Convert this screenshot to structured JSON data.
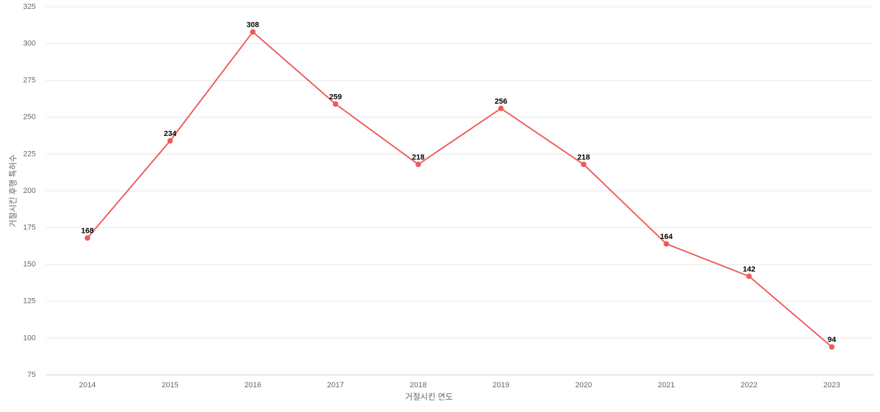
{
  "chart_data": {
    "type": "line",
    "x_label": "거절시킨 연도",
    "y_label": "거절시킨 후행 특허수",
    "categories": [
      "2014",
      "2015",
      "2016",
      "2017",
      "2018",
      "2019",
      "2020",
      "2021",
      "2022",
      "2023"
    ],
    "values": [
      168,
      234,
      308,
      259,
      218,
      256,
      218,
      164,
      142,
      94
    ],
    "color": "#ee5a5a",
    "ylim": [
      75,
      325
    ],
    "yticks": [
      75,
      100,
      125,
      150,
      175,
      200,
      225,
      250,
      275,
      300,
      325
    ],
    "grid": true
  }
}
